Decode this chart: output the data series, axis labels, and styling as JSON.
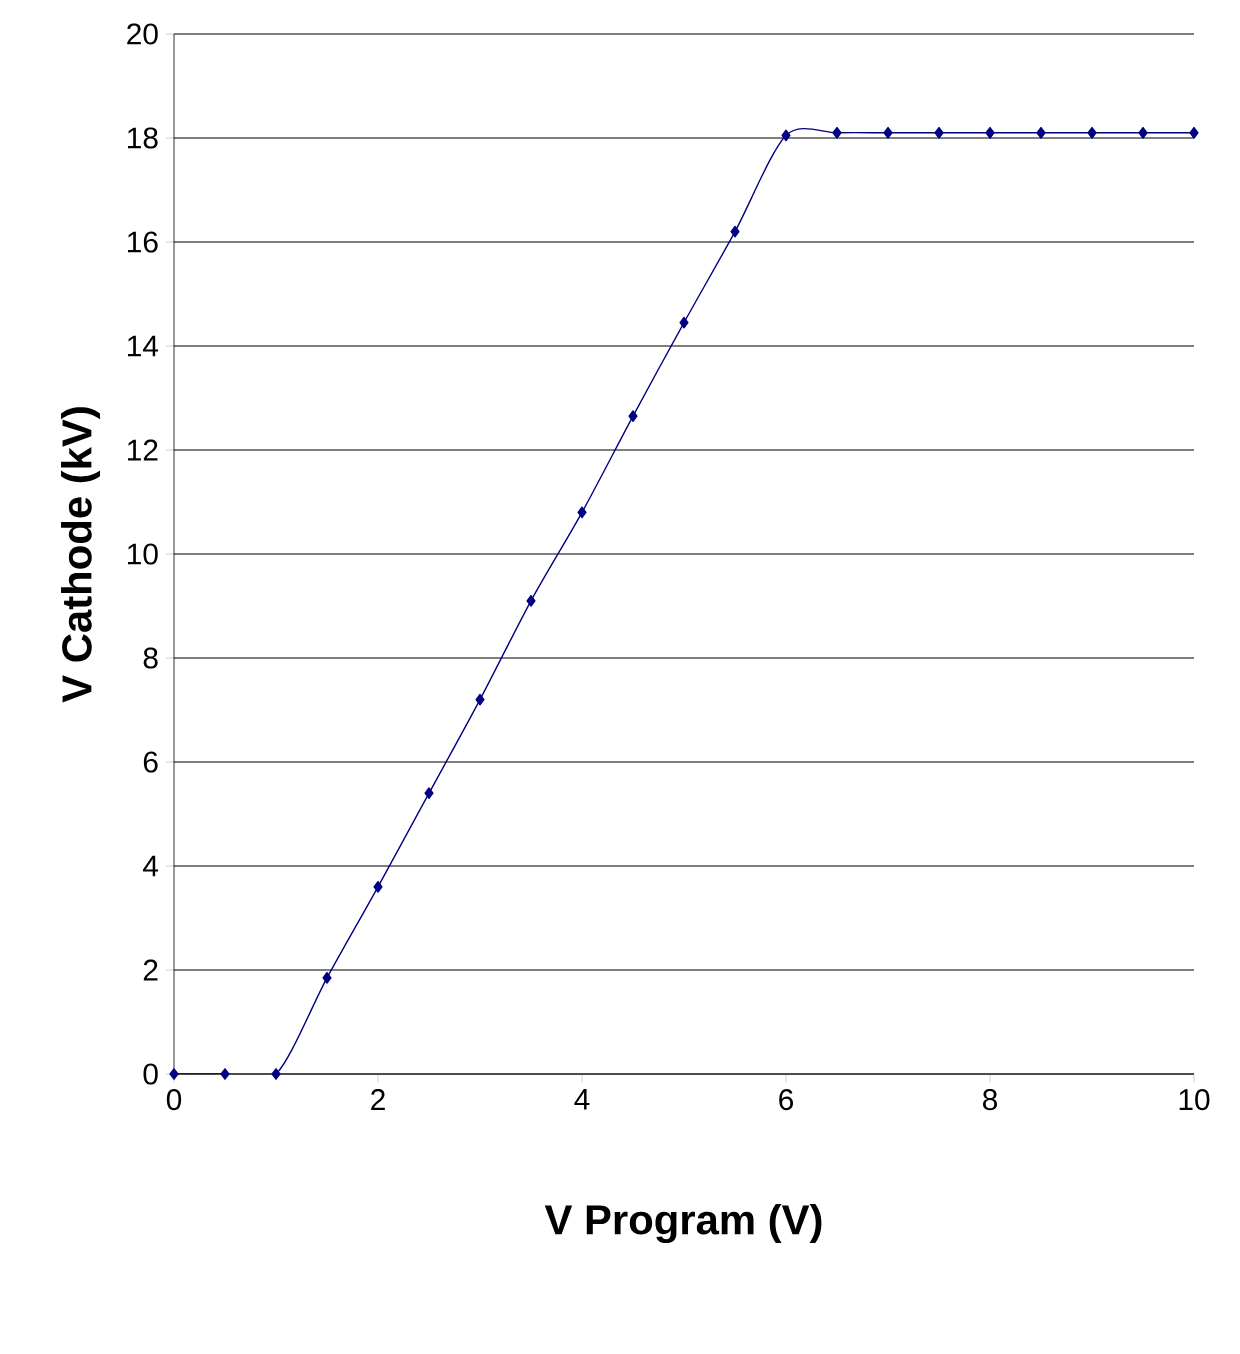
{
  "chart_data": {
    "type": "line",
    "xlabel": "V Program (V)",
    "ylabel": "V Cathode (kV)",
    "x": [
      0,
      0.5,
      1,
      1.5,
      2,
      2.5,
      3,
      3.5,
      4,
      4.5,
      5,
      5.5,
      6,
      6.5,
      7,
      7.5,
      8,
      8.5,
      9,
      9.5,
      10
    ],
    "series": [
      {
        "color": "#000080",
        "values": [
          0,
          0,
          0,
          1.85,
          3.6,
          5.4,
          7.2,
          9.1,
          10.8,
          12.65,
          14.45,
          16.2,
          18.05,
          18.1,
          18.1,
          18.1,
          18.1,
          18.1,
          18.1,
          18.1,
          18.1
        ]
      }
    ],
    "xlim": [
      0,
      10
    ],
    "ylim": [
      0,
      20
    ],
    "xticks": [
      0,
      2,
      4,
      6,
      8,
      10
    ],
    "yticks": [
      0,
      2,
      4,
      6,
      8,
      10,
      12,
      14,
      16,
      18,
      20
    ],
    "grid": "y",
    "marker": "diamond",
    "line_style": "solid"
  }
}
